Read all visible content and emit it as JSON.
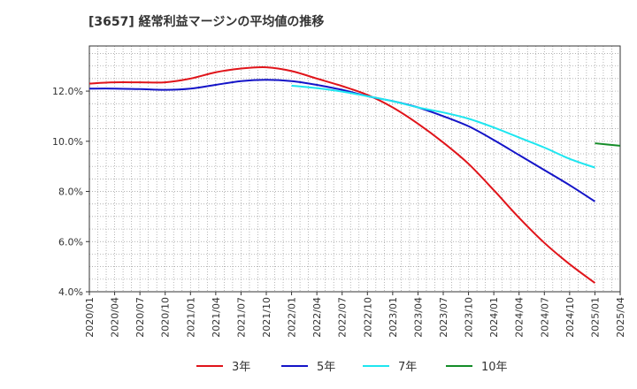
{
  "chart_data": {
    "type": "line",
    "title": "[3657]  経常利益マージンの平均値の推移",
    "xlabel": "",
    "ylabel": "",
    "x": [
      "2020/01",
      "2020/04",
      "2020/07",
      "2020/10",
      "2021/01",
      "2021/04",
      "2021/07",
      "2021/10",
      "2022/01",
      "2022/04",
      "2022/07",
      "2022/10",
      "2023/01",
      "2023/04",
      "2023/07",
      "2023/10",
      "2024/01",
      "2024/04",
      "2024/07",
      "2024/10",
      "2025/01",
      "2025/04"
    ],
    "ylim": [
      4.0,
      13.8
    ],
    "y_ticks": [
      4.0,
      6.0,
      8.0,
      10.0,
      12.0
    ],
    "y_tick_labels": [
      "4.0%",
      "6.0%",
      "8.0%",
      "10.0%",
      "12.0%"
    ],
    "grid": true,
    "legend_position": "bottom",
    "series": [
      {
        "name": "3年",
        "color": "#e0141a",
        "values": [
          12.3,
          12.35,
          12.35,
          12.35,
          12.5,
          12.75,
          12.9,
          12.95,
          12.8,
          12.5,
          12.2,
          11.85,
          11.35,
          10.7,
          9.95,
          9.1,
          8.05,
          6.95,
          5.95,
          5.1,
          4.35,
          null
        ]
      },
      {
        "name": "5年",
        "color": "#1414c8",
        "values": [
          12.1,
          12.1,
          12.08,
          12.05,
          12.1,
          12.25,
          12.4,
          12.45,
          12.4,
          12.25,
          12.05,
          11.8,
          11.6,
          11.35,
          11.0,
          10.6,
          10.05,
          9.45,
          8.85,
          8.25,
          7.6,
          null
        ]
      },
      {
        "name": "7年",
        "color": "#1ee6f0",
        "values": [
          null,
          null,
          null,
          null,
          null,
          null,
          null,
          null,
          12.22,
          12.12,
          11.98,
          11.8,
          11.6,
          11.35,
          11.15,
          10.9,
          10.55,
          10.15,
          9.75,
          9.3,
          8.95,
          null
        ]
      },
      {
        "name": "10年",
        "color": "#148c28",
        "values": [
          null,
          null,
          null,
          null,
          null,
          null,
          null,
          null,
          null,
          null,
          null,
          null,
          null,
          null,
          null,
          null,
          null,
          null,
          null,
          null,
          9.92,
          9.82
        ]
      }
    ]
  }
}
